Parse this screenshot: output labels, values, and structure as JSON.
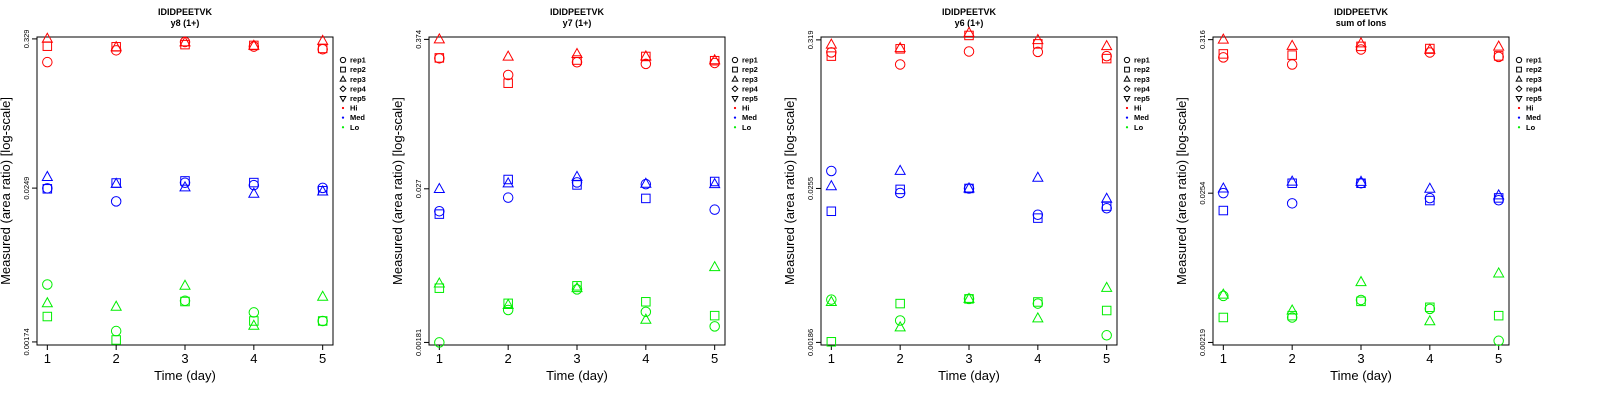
{
  "colors": {
    "Hi": "#ff0000",
    "Med": "#0000ff",
    "Lo": "#00ee00"
  },
  "legend": {
    "entries": [
      {
        "label": "rep1",
        "shape": "circle"
      },
      {
        "label": "rep2",
        "shape": "square"
      },
      {
        "label": "rep3",
        "shape": "triangle-up"
      },
      {
        "label": "rep4",
        "shape": "diamond"
      },
      {
        "label": "rep5",
        "shape": "triangle-down"
      },
      {
        "label": "Hi",
        "shape": "dot",
        "color": "#ff0000"
      },
      {
        "label": "Med",
        "shape": "dot",
        "color": "#0000ff"
      },
      {
        "label": "Lo",
        "shape": "dot",
        "color": "#00ee00"
      }
    ]
  },
  "chart_data": [
    {
      "type": "scatter",
      "title": "IDIDPEETVK",
      "subtitle": "y8 (1+)",
      "xlabel": "Time (day)",
      "ylabel": "Measured (area ratio) [log-scale]",
      "x": [
        1,
        2,
        3,
        4,
        5
      ],
      "yscale": "log",
      "ylim": [
        0.00165,
        0.34
      ],
      "yticks": [
        0.00174,
        0.0249,
        0.329
      ],
      "ytick_labels": [
        "0.00174",
        "0.0249",
        "0.329"
      ],
      "series": [
        {
          "group": "Hi",
          "rep": "rep1",
          "values": [
            0.22,
            0.27,
            0.312,
            0.288,
            0.275
          ]
        },
        {
          "group": "Hi",
          "rep": "rep2",
          "values": [
            0.29,
            0.287,
            0.298,
            0.294,
            0.279
          ]
        },
        {
          "group": "Hi",
          "rep": "rep3",
          "values": [
            0.33,
            0.285,
            0.31,
            0.292,
            0.318
          ]
        },
        {
          "group": "Med",
          "rep": "rep1",
          "values": [
            0.0248,
            0.0198,
            0.0273,
            0.0262,
            0.025
          ]
        },
        {
          "group": "Med",
          "rep": "rep2",
          "values": [
            0.0246,
            0.0272,
            0.0282,
            0.0274,
            0.0238
          ]
        },
        {
          "group": "Med",
          "rep": "rep3",
          "values": [
            0.0302,
            0.0268,
            0.0252,
            0.0226,
            0.0235
          ]
        },
        {
          "group": "Lo",
          "rep": "rep1",
          "values": [
            0.0047,
            0.0021,
            0.00355,
            0.0029,
            0.0025
          ]
        },
        {
          "group": "Lo",
          "rep": "rep2",
          "values": [
            0.0027,
            0.0018,
            0.0035,
            0.0025,
            0.0025
          ]
        },
        {
          "group": "Lo",
          "rep": "rep3",
          "values": [
            0.0034,
            0.0032,
            0.0046,
            0.0023,
            0.0038
          ]
        }
      ]
    },
    {
      "type": "scatter",
      "title": "IDIDPEETVK",
      "subtitle": "y7 (1+)",
      "xlabel": "Time (day)",
      "ylabel": "Measured (area ratio) [log-scale]",
      "x": [
        1,
        2,
        3,
        4,
        5
      ],
      "yscale": "log",
      "ylim": [
        0.00173,
        0.39
      ],
      "yticks": [
        0.00181,
        0.027,
        0.374
      ],
      "ytick_labels": [
        "0.00181",
        "0.027",
        "0.374"
      ],
      "series": [
        {
          "group": "Hi",
          "rep": "rep1",
          "values": [
            0.268,
            0.2,
            0.25,
            0.243,
            0.247
          ]
        },
        {
          "group": "Hi",
          "rep": "rep2",
          "values": [
            0.27,
            0.173,
            0.26,
            0.277,
            0.257
          ]
        },
        {
          "group": "Hi",
          "rep": "rep3",
          "values": [
            0.374,
            0.276,
            0.289,
            0.277,
            0.259
          ]
        },
        {
          "group": "Med",
          "rep": "rep1",
          "values": [
            0.0182,
            0.0231,
            0.0302,
            0.0293,
            0.0187
          ]
        },
        {
          "group": "Med",
          "rep": "rep2",
          "values": [
            0.0173,
            0.0318,
            0.0289,
            0.0228,
            0.0307
          ]
        },
        {
          "group": "Med",
          "rep": "rep3",
          "values": [
            0.0269,
            0.0297,
            0.0333,
            0.0295,
            0.0293
          ]
        },
        {
          "group": "Lo",
          "rep": "rep1",
          "values": [
            0.00181,
            0.0032,
            0.0046,
            0.0031,
            0.0024
          ]
        },
        {
          "group": "Lo",
          "rep": "rep2",
          "values": [
            0.0047,
            0.0036,
            0.0049,
            0.0037,
            0.0029
          ]
        },
        {
          "group": "Lo",
          "rep": "rep3",
          "values": [
            0.0051,
            0.0035,
            0.0047,
            0.0027,
            0.0068
          ]
        }
      ]
    },
    {
      "type": "scatter",
      "title": "IDIDPEETVK",
      "subtitle": "y6 (1+)",
      "xlabel": "Time (day)",
      "ylabel": "Measured (area ratio) [log-scale]",
      "x": [
        1,
        2,
        3,
        4,
        5
      ],
      "yscale": "log",
      "ylim": [
        0.00178,
        0.335
      ],
      "yticks": [
        0.00186,
        0.0255,
        0.319
      ],
      "ytick_labels": [
        "0.00186",
        "0.0255",
        "0.319"
      ],
      "series": [
        {
          "group": "Hi",
          "rep": "rep1",
          "values": [
            0.258,
            0.21,
            0.262,
            0.26,
            0.242
          ]
        },
        {
          "group": "Hi",
          "rep": "rep2",
          "values": [
            0.242,
            0.274,
            0.344,
            0.298,
            0.232
          ]
        },
        {
          "group": "Hi",
          "rep": "rep3",
          "values": [
            0.294,
            0.277,
            0.359,
            0.318,
            0.287
          ]
        },
        {
          "group": "Med",
          "rep": "rep1",
          "values": [
            0.0343,
            0.0236,
            0.0255,
            0.0163,
            0.0182
          ]
        },
        {
          "group": "Med",
          "rep": "rep2",
          "values": [
            0.0173,
            0.0251,
            0.0255,
            0.0154,
            0.0189
          ]
        },
        {
          "group": "Med",
          "rep": "rep3",
          "values": [
            0.0265,
            0.0344,
            0.0255,
            0.0306,
            0.0214
          ]
        },
        {
          "group": "Lo",
          "rep": "rep1",
          "values": [
            0.00385,
            0.0027,
            0.0039,
            0.0036,
            0.0021
          ]
        },
        {
          "group": "Lo",
          "rep": "rep2",
          "values": [
            0.00188,
            0.0036,
            0.0039,
            0.0037,
            0.0032
          ]
        },
        {
          "group": "Lo",
          "rep": "rep3",
          "values": [
            0.0037,
            0.0024,
            0.0039,
            0.0028,
            0.0047
          ]
        }
      ]
    },
    {
      "type": "scatter",
      "title": "IDIDPEETVK",
      "subtitle": "sum of Ions",
      "xlabel": "Time (day)",
      "ylabel": "Measured (area ratio) [log-scale]",
      "x": [
        1,
        2,
        3,
        4,
        5
      ],
      "yscale": "log",
      "ylim": [
        0.0021,
        0.33
      ],
      "yticks": [
        0.00219,
        0.0254,
        0.316
      ],
      "ytick_labels": [
        "0.00219",
        "0.0254",
        "0.316"
      ],
      "series": [
        {
          "group": "Hi",
          "rep": "rep1",
          "values": [
            0.236,
            0.21,
            0.269,
            0.256,
            0.238
          ]
        },
        {
          "group": "Hi",
          "rep": "rep2",
          "values": [
            0.25,
            0.245,
            0.283,
            0.273,
            0.242
          ]
        },
        {
          "group": "Hi",
          "rep": "rep3",
          "values": [
            0.316,
            0.285,
            0.297,
            0.267,
            0.282
          ]
        },
        {
          "group": "Med",
          "rep": "rep1",
          "values": [
            0.0254,
            0.0215,
            0.0299,
            0.0234,
            0.0226
          ]
        },
        {
          "group": "Med",
          "rep": "rep2",
          "values": [
            0.0191,
            0.0299,
            0.0299,
            0.0225,
            0.0235
          ]
        },
        {
          "group": "Med",
          "rep": "rep3",
          "values": [
            0.0274,
            0.0307,
            0.0306,
            0.0273,
            0.0245
          ]
        },
        {
          "group": "Lo",
          "rep": "rep1",
          "values": [
            0.0047,
            0.0033,
            0.0044,
            0.0038,
            0.00225
          ]
        },
        {
          "group": "Lo",
          "rep": "rep2",
          "values": [
            0.0033,
            0.0034,
            0.0043,
            0.0039,
            0.0034
          ]
        },
        {
          "group": "Lo",
          "rep": "rep3",
          "values": [
            0.0048,
            0.0037,
            0.0059,
            0.0031,
            0.0068
          ]
        }
      ]
    }
  ]
}
